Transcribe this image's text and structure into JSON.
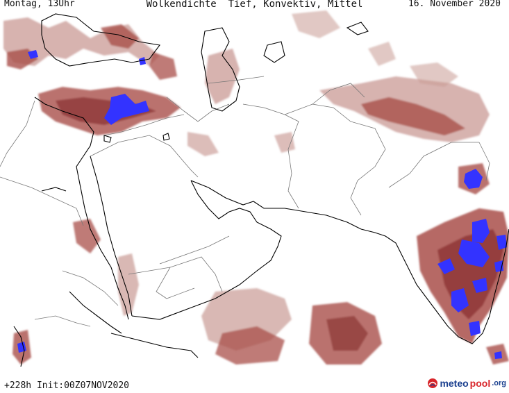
{
  "header": {
    "left_text": "Montag, 13Uhr",
    "title": "Wolkendichte  Tief, Konvektiv, Mittel",
    "date": "16. November 2020"
  },
  "footer": {
    "run_info": "+228h Init:00Z07NOV2020",
    "brand": {
      "part1": "meteo",
      "part2": "pool",
      "part3": ".org"
    }
  },
  "map": {
    "region": "Middle East / South Asia",
    "colors": {
      "cloud_light": "#c99a94",
      "cloud_medium": "#a9504a",
      "cloud_dense": "#7a1e20",
      "convective": "#3333ff",
      "coastline": "#000000",
      "border": "#777777"
    },
    "icons": [
      "logo-icon"
    ]
  }
}
